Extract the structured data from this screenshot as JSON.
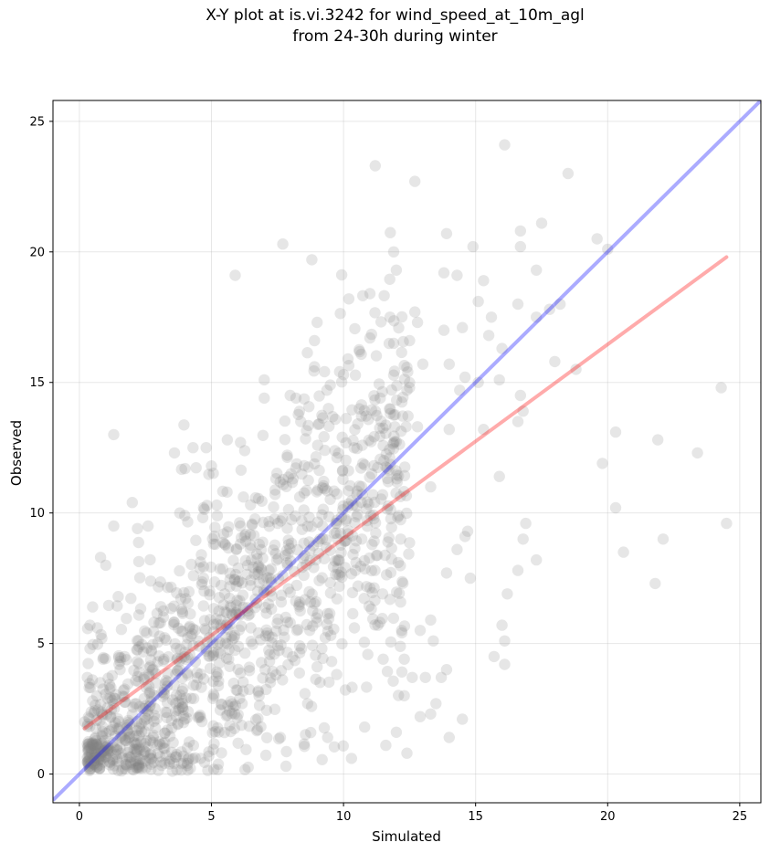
{
  "figure": {
    "title_line1": "X-Y plot at is.vi.3242 for wind_speed_at_10m_agl",
    "title_line2": "from 24-30h during winter"
  },
  "chart_data": {
    "type": "scatter",
    "xlabel": "Simulated",
    "ylabel": "Observed",
    "xlim": [
      -1.0,
      25.8
    ],
    "ylim": [
      -1.1,
      25.8
    ],
    "xticks": [
      0,
      5,
      10,
      15,
      20,
      25
    ],
    "yticks": [
      0,
      5,
      10,
      15,
      20,
      25
    ],
    "grid": true,
    "point_color": "#808080",
    "point_opacity": 0.2,
    "identity_line": {
      "from": [
        -1.0,
        -1.0
      ],
      "to": [
        25.8,
        25.8
      ],
      "color": "#0000ff"
    },
    "fit_line": {
      "from": [
        0.2,
        1.75
      ],
      "to": [
        24.5,
        19.8
      ],
      "color": "#ff0000"
    },
    "points": [
      [
        16.1,
        24.1
      ],
      [
        11.2,
        23.3
      ],
      [
        12.7,
        22.7
      ],
      [
        18.5,
        23.0
      ],
      [
        17.5,
        21.1
      ],
      [
        19.6,
        20.5
      ],
      [
        13.9,
        20.7
      ],
      [
        7.7,
        20.3
      ],
      [
        5.9,
        19.1
      ],
      [
        8.8,
        19.7
      ],
      [
        11.9,
        20.0
      ],
      [
        14.9,
        20.2
      ],
      [
        16.7,
        20.8
      ],
      [
        20.0,
        20.1
      ],
      [
        16.7,
        20.2
      ],
      [
        12.0,
        19.3
      ],
      [
        13.8,
        19.2
      ],
      [
        14.3,
        19.1
      ],
      [
        15.3,
        18.9
      ],
      [
        17.3,
        19.3
      ],
      [
        10.2,
        18.2
      ],
      [
        11.0,
        18.4
      ],
      [
        15.1,
        18.1
      ],
      [
        15.6,
        17.5
      ],
      [
        16.6,
        18.0
      ],
      [
        17.8,
        17.8
      ],
      [
        18.2,
        18.0
      ],
      [
        17.3,
        17.5
      ],
      [
        12.7,
        17.7
      ],
      [
        12.8,
        17.3
      ],
      [
        9.0,
        17.3
      ],
      [
        14.5,
        17.1
      ],
      [
        13.8,
        17.0
      ],
      [
        15.5,
        16.8
      ],
      [
        11.0,
        16.7
      ],
      [
        11.9,
        16.5
      ],
      [
        8.9,
        16.6
      ],
      [
        12.5,
        16.6
      ],
      [
        16.0,
        16.3
      ],
      [
        18.8,
        15.5
      ],
      [
        7.0,
        15.1
      ],
      [
        8.9,
        15.6
      ],
      [
        9.5,
        14.9
      ],
      [
        10.0,
        15.3
      ],
      [
        13.0,
        15.7
      ],
      [
        14.0,
        15.7
      ],
      [
        14.6,
        15.2
      ],
      [
        15.1,
        15.0
      ],
      [
        15.9,
        15.1
      ],
      [
        18.0,
        15.8
      ],
      [
        14.4,
        14.7
      ],
      [
        12.5,
        14.8
      ],
      [
        7.0,
        14.4
      ],
      [
        8.2,
        14.4
      ],
      [
        16.7,
        14.5
      ],
      [
        16.8,
        13.9
      ],
      [
        12.8,
        13.3
      ],
      [
        14.0,
        13.2
      ],
      [
        15.3,
        13.2
      ],
      [
        16.6,
        13.5
      ],
      [
        1.3,
        13.0
      ],
      [
        20.3,
        13.1
      ],
      [
        21.9,
        12.8
      ],
      [
        23.4,
        12.3
      ],
      [
        15.9,
        11.4
      ],
      [
        19.8,
        11.9
      ],
      [
        13.3,
        11.0
      ],
      [
        2.0,
        10.4
      ],
      [
        20.3,
        10.2
      ],
      [
        16.9,
        9.6
      ],
      [
        16.8,
        9.0
      ],
      [
        14.6,
        9.1
      ],
      [
        14.7,
        9.3
      ],
      [
        14.3,
        8.6
      ],
      [
        17.3,
        8.2
      ],
      [
        20.6,
        8.5
      ],
      [
        22.1,
        9.0
      ],
      [
        24.5,
        9.6
      ],
      [
        16.6,
        7.8
      ],
      [
        14.8,
        7.5
      ],
      [
        13.9,
        7.7
      ],
      [
        21.8,
        7.3
      ],
      [
        16.2,
        6.9
      ],
      [
        16.0,
        5.7
      ],
      [
        16.1,
        5.1
      ],
      [
        15.7,
        4.5
      ],
      [
        16.1,
        4.2
      ],
      [
        24.3,
        14.8
      ],
      [
        13.3,
        5.9
      ],
      [
        13.4,
        5.1
      ],
      [
        13.7,
        3.7
      ],
      [
        13.9,
        4.0
      ],
      [
        13.5,
        2.7
      ],
      [
        14.5,
        2.1
      ],
      [
        14.0,
        1.4
      ],
      [
        12.4,
        0.8
      ],
      [
        13.3,
        2.3
      ],
      [
        12.9,
        2.2
      ],
      [
        11.6,
        1.1
      ],
      [
        12.0,
        1.6
      ],
      [
        10.3,
        0.6
      ],
      [
        9.4,
        1.4
      ],
      [
        10.8,
        1.8
      ],
      [
        12.3,
        3.0
      ],
      [
        11.5,
        4.4
      ],
      [
        12.3,
        4.4
      ],
      [
        12.6,
        3.7
      ],
      [
        13.1,
        3.7
      ],
      [
        12.2,
        5.5
      ],
      [
        12.9,
        5.5
      ],
      [
        11.3,
        5.7
      ],
      [
        3.6,
        12.3
      ],
      [
        4.3,
        12.5
      ],
      [
        4.8,
        12.5
      ],
      [
        5.6,
        12.8
      ],
      [
        6.1,
        12.7
      ],
      [
        4.0,
        11.7
      ],
      [
        5.0,
        11.8
      ],
      [
        4.7,
        10.2
      ],
      [
        5.2,
        10.3
      ],
      [
        3.8,
        10.0
      ],
      [
        2.6,
        9.5
      ],
      [
        1.3,
        9.5
      ],
      [
        2.2,
        9.4
      ],
      [
        0.8,
        8.3
      ],
      [
        1.0,
        8.0
      ],
      [
        0.5,
        6.4
      ],
      [
        0.4,
        5.7
      ],
      [
        0.4,
        4.8
      ],
      [
        0.3,
        3.7
      ],
      [
        0.5,
        2.8
      ],
      [
        0.2,
        2.0
      ],
      [
        0.4,
        1.0
      ]
    ],
    "cloud": {
      "seed": 3242,
      "count": 1300,
      "x_range": [
        0.3,
        12.5
      ],
      "slope": 1.0,
      "noise": 2.2
    }
  }
}
